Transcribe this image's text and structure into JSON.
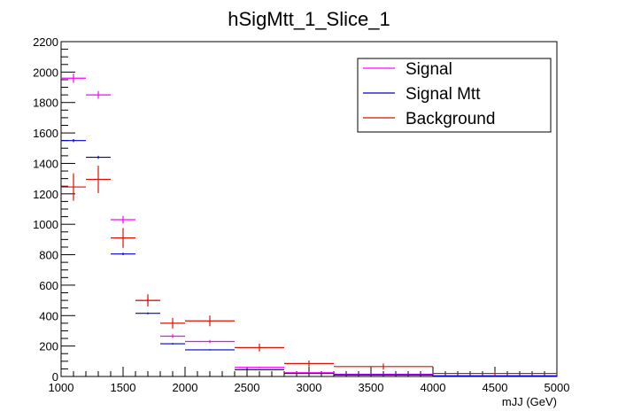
{
  "chart_data": {
    "type": "scatter",
    "title": "hSigMtt_1_Slice_1",
    "xlabel": "mJJ (GeV)",
    "ylabel": "",
    "xlim": [
      1000,
      5000
    ],
    "ylim": [
      0,
      2200
    ],
    "x_ticks": [
      1000,
      1500,
      2000,
      2500,
      3000,
      3500,
      4000,
      4500,
      5000
    ],
    "y_ticks": [
      0,
      200,
      400,
      600,
      800,
      1000,
      1200,
      1400,
      1600,
      1800,
      2000,
      2200
    ],
    "grid": false,
    "legend_position": "top-right",
    "series": [
      {
        "name": "Signal",
        "color": "#ff00ff",
        "points": [
          {
            "x_low": 1000,
            "x_high": 1200,
            "y": 1960,
            "err": 30
          },
          {
            "x_low": 1200,
            "x_high": 1400,
            "y": 1850,
            "err": 25
          },
          {
            "x_low": 1400,
            "x_high": 1600,
            "y": 1030,
            "err": 25
          },
          {
            "x_low": 1600,
            "x_high": 1800,
            "y": 500,
            "err": 20
          },
          {
            "x_low": 1800,
            "x_high": 2000,
            "y": 265,
            "err": 12
          },
          {
            "x_low": 2000,
            "x_high": 2400,
            "y": 230,
            "err": 10
          },
          {
            "x_low": 2400,
            "x_high": 2800,
            "y": 60,
            "err": 5
          },
          {
            "x_low": 2800,
            "x_high": 3200,
            "y": 25,
            "err": 3
          },
          {
            "x_low": 3200,
            "x_high": 4000,
            "y": 15,
            "err": 2
          },
          {
            "x_low": 4000,
            "x_high": 5000,
            "y": 5,
            "err": 1
          }
        ]
      },
      {
        "name": "Signal Mtt",
        "color": "#0000cc",
        "points": [
          {
            "x_low": 1000,
            "x_high": 1200,
            "y": 1550,
            "err": 10
          },
          {
            "x_low": 1200,
            "x_high": 1400,
            "y": 1440,
            "err": 10
          },
          {
            "x_low": 1400,
            "x_high": 1600,
            "y": 805,
            "err": 8
          },
          {
            "x_low": 1600,
            "x_high": 1800,
            "y": 415,
            "err": 6
          },
          {
            "x_low": 1800,
            "x_high": 2000,
            "y": 215,
            "err": 5
          },
          {
            "x_low": 2000,
            "x_high": 2400,
            "y": 175,
            "err": 4
          },
          {
            "x_low": 2400,
            "x_high": 2800,
            "y": 45,
            "err": 2
          },
          {
            "x_low": 2800,
            "x_high": 3200,
            "y": 20,
            "err": 1
          },
          {
            "x_low": 3200,
            "x_high": 4000,
            "y": 10,
            "err": 1
          },
          {
            "x_low": 4000,
            "x_high": 5000,
            "y": 3,
            "err": 1
          }
        ]
      },
      {
        "name": "Background",
        "color": "#dd1100",
        "points": [
          {
            "x_low": 1000,
            "x_high": 1200,
            "y": 1245,
            "err": 90
          },
          {
            "x_low": 1200,
            "x_high": 1400,
            "y": 1295,
            "err": 90
          },
          {
            "x_low": 1400,
            "x_high": 1600,
            "y": 910,
            "err": 65
          },
          {
            "x_low": 1600,
            "x_high": 1800,
            "y": 500,
            "err": 40
          },
          {
            "x_low": 1800,
            "x_high": 2000,
            "y": 350,
            "err": 35
          },
          {
            "x_low": 2000,
            "x_high": 2400,
            "y": 365,
            "err": 35
          },
          {
            "x_low": 2400,
            "x_high": 2800,
            "y": 190,
            "err": 25
          },
          {
            "x_low": 2800,
            "x_high": 3200,
            "y": 85,
            "err": 20
          },
          {
            "x_low": 3200,
            "x_high": 4000,
            "y": 65,
            "err": 20
          },
          {
            "x_low": 4000,
            "x_high": 5000,
            "y": 20,
            "err": 12
          }
        ]
      }
    ]
  }
}
